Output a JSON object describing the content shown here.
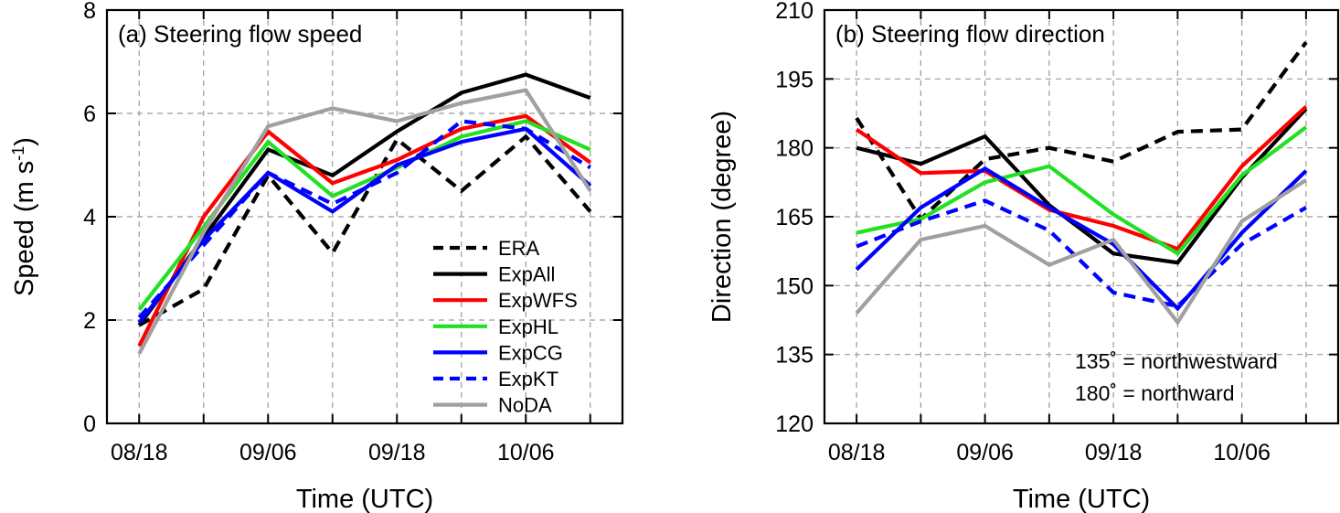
{
  "chart_data": [
    {
      "type": "line",
      "title": "(a) Steering flow speed",
      "xlabel": "Time (UTC)",
      "ylabel": "Speed (m s",
      "ylabel_sup": "-1",
      "ylabel_close": ")",
      "x": [
        0,
        1,
        2,
        3,
        4,
        5,
        6,
        7
      ],
      "xticks": [
        0,
        2,
        4,
        6
      ],
      "xticklabels": [
        "08/18",
        "09/06",
        "09/18",
        "10/06"
      ],
      "yticks": [
        0,
        2,
        4,
        6,
        8
      ],
      "yticklabels": [
        "0",
        "2",
        "4",
        "6",
        "8"
      ],
      "xlim": [
        -0.5,
        7.5
      ],
      "ylim": [
        0,
        8
      ],
      "grid": true,
      "legend_position": "bottom-right",
      "series": [
        {
          "name": "ERA",
          "color": "#000000",
          "dash": "dashed",
          "values": [
            1.9,
            2.6,
            4.8,
            3.3,
            5.5,
            4.5,
            5.55,
            4.1
          ]
        },
        {
          "name": "ExpAll",
          "color": "#000000",
          "dash": "solid",
          "values": [
            1.9,
            3.6,
            5.3,
            4.8,
            5.65,
            6.4,
            6.75,
            6.3
          ]
        },
        {
          "name": "ExpWFS",
          "color": "#ff0000",
          "dash": "solid",
          "values": [
            1.5,
            4.0,
            5.65,
            4.65,
            5.1,
            5.7,
            5.95,
            5.05
          ]
        },
        {
          "name": "ExpHL",
          "color": "#22e022",
          "dash": "solid",
          "values": [
            2.2,
            3.8,
            5.45,
            4.4,
            4.95,
            5.55,
            5.85,
            5.3
          ]
        },
        {
          "name": "ExpCG",
          "color": "#0000ff",
          "dash": "solid",
          "values": [
            1.95,
            3.55,
            4.85,
            4.1,
            5.0,
            5.45,
            5.7,
            4.6
          ]
        },
        {
          "name": "ExpKT",
          "color": "#0000ff",
          "dash": "dashed",
          "values": [
            2.05,
            3.45,
            4.85,
            4.25,
            4.85,
            5.85,
            5.7,
            4.95
          ]
        },
        {
          "name": "NoDA",
          "color": "#a0a0a0",
          "dash": "solid",
          "values": [
            1.35,
            3.7,
            5.75,
            6.1,
            5.85,
            6.2,
            6.45,
            4.5
          ]
        }
      ]
    },
    {
      "type": "line",
      "title": "(b) Steering flow direction",
      "xlabel": "Time (UTC)",
      "ylabel": "Direction (degree)",
      "x": [
        0,
        1,
        2,
        3,
        4,
        5,
        6,
        7
      ],
      "xticks": [
        0,
        2,
        4,
        6
      ],
      "xticklabels": [
        "08/18",
        "09/06",
        "09/18",
        "10/06"
      ],
      "yticks": [
        120,
        135,
        150,
        165,
        180,
        195,
        210
      ],
      "yticklabels": [
        "120",
        "135",
        "150",
        "165",
        "180",
        "195",
        "210"
      ],
      "xlim": [
        -0.5,
        7.5
      ],
      "ylim": [
        120,
        210
      ],
      "grid": true,
      "annotations": [
        "135˚ = northwestward",
        "180˚ = northward"
      ],
      "series": [
        {
          "name": "ERA",
          "color": "#000000",
          "dash": "dashed",
          "values": [
            186.5,
            164.5,
            177.5,
            180.0,
            177.0,
            183.5,
            184.0,
            203.0
          ]
        },
        {
          "name": "ExpAll",
          "color": "#000000",
          "dash": "solid",
          "values": [
            180.0,
            176.5,
            182.5,
            167.5,
            157.0,
            155.0,
            173.5,
            188.5
          ]
        },
        {
          "name": "ExpWFS",
          "color": "#ff0000",
          "dash": "solid",
          "values": [
            184.0,
            174.5,
            175.0,
            166.5,
            163.0,
            158.0,
            176.0,
            189.0
          ]
        },
        {
          "name": "ExpHL",
          "color": "#22e022",
          "dash": "solid",
          "values": [
            161.5,
            164.5,
            172.5,
            176.0,
            165.5,
            157.0,
            174.0,
            184.5
          ]
        },
        {
          "name": "ExpCG",
          "color": "#0000ff",
          "dash": "solid",
          "values": [
            153.5,
            167.0,
            175.5,
            167.0,
            159.0,
            145.0,
            161.5,
            175.0
          ]
        },
        {
          "name": "ExpKT",
          "color": "#0000ff",
          "dash": "dashed",
          "values": [
            158.5,
            164.0,
            168.5,
            162.0,
            148.5,
            145.5,
            159.0,
            167.0
          ]
        },
        {
          "name": "NoDA",
          "color": "#a0a0a0",
          "dash": "solid",
          "values": [
            144.0,
            160.0,
            163.0,
            154.5,
            160.0,
            142.0,
            164.0,
            173.0
          ]
        }
      ]
    }
  ]
}
